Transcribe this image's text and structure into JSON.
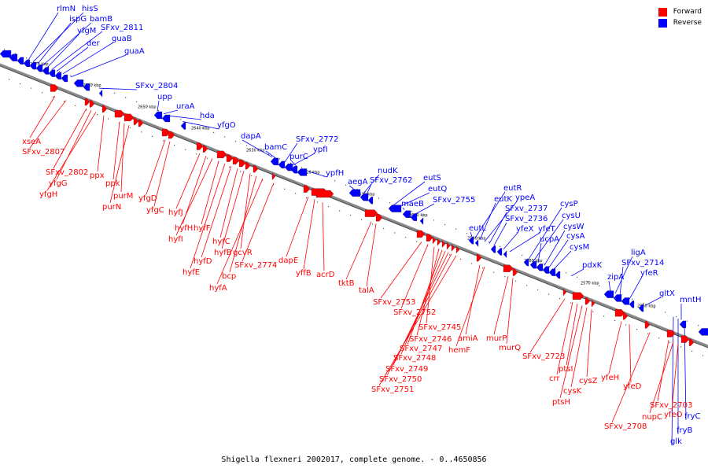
{
  "legend": {
    "forward_label": "Forward",
    "reverse_label": "Reverse",
    "forward_color": "#ff0000",
    "reverse_color": "#0000ff"
  },
  "caption": "Shigella flexneri 2002017, complete genome. - 0..4650856",
  "kbp_ticks": [
    "2670 kbp",
    "2660 kbp",
    "2650 kbp",
    "2640 kbp",
    "2630 kbp",
    "2620 kbp",
    "2610 kbp",
    "2600 kbp",
    "2590 kbp",
    "2580 kbp",
    "2570 kbp",
    "2560 kbp"
  ],
  "reverse_genes": [
    "rlmN",
    "hisS",
    "ispG",
    "bamB",
    "yfgM",
    "SFxv_2811",
    "der",
    "guaB",
    "guaA",
    "SFxv_2804",
    "upp",
    "uraA",
    "hda",
    "yfgO",
    "dapA",
    "bamC",
    "SFxv_2772",
    "ypfI",
    "purC",
    "ypfH",
    "nudK",
    "aegA",
    "SFxv_2762",
    "eutS",
    "eutQ",
    "maeB",
    "SFxv_2755",
    "eutR",
    "eutK",
    "ypeA",
    "SFxv_2737",
    "SFxv_2736",
    "eutL",
    "yfeX",
    "yfeT",
    "cysP",
    "cysU",
    "ucpA",
    "cysW",
    "cysA",
    "cysM",
    "pdxK",
    "ligA",
    "SFxv_2714",
    "zipA",
    "yfeR",
    "gltX",
    "mntH",
    "fryC",
    "fryB",
    "glk"
  ],
  "forward_genes": [
    "xseA",
    "SFxv_2807",
    "SFxv_2802",
    "yfgG",
    "yfgH",
    "ppx",
    "ppk",
    "purM",
    "purN",
    "yfgD",
    "yfgC",
    "hyfJ",
    "hyfH",
    "hyfI",
    "hyfF",
    "hyfE",
    "hyfD",
    "hyfC",
    "hyfB",
    "gcvR",
    "bcp",
    "hyfA",
    "SFxv_2774",
    "dapE",
    "yffB",
    "acrD",
    "tktB",
    "talA",
    "SFxv_2753",
    "SFxv_2752",
    "SFxv_2745",
    "SFxv_2746",
    "SFxv_2747",
    "SFxv_2748",
    "SFxv_2749",
    "SFxv_2750",
    "SFxv_2751",
    "amiA",
    "hemF",
    "murP",
    "murQ",
    "SFxv_2723",
    "crr",
    "ptsI",
    "ptsH",
    "cysK",
    "cysZ",
    "yfeH",
    "yfeD",
    "SFxv_2708",
    "SFxv_2703",
    "nupC",
    "yfeO"
  ]
}
